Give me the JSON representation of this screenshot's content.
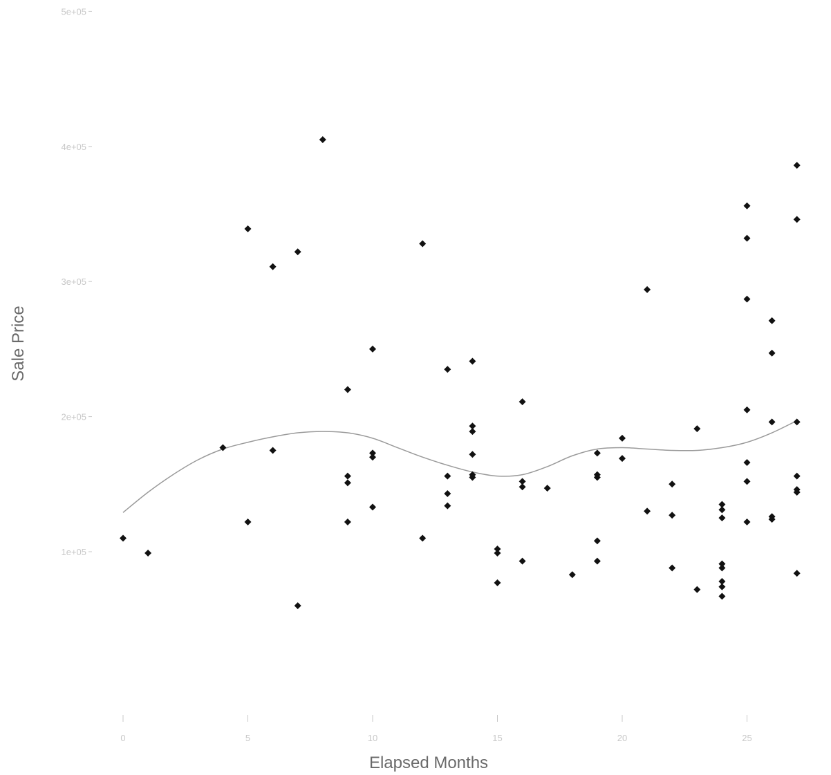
{
  "chart_data": {
    "type": "scatter",
    "title": "",
    "xlabel": "Elapsed Months",
    "ylabel": "Sale Price",
    "xlim": [
      -0.3,
      28.3
    ],
    "ylim": [
      50000,
      500000
    ],
    "x_ticks": [
      0,
      5,
      10,
      15,
      20,
      25
    ],
    "x_tick_labels": [
      "0",
      "5",
      "10",
      "15",
      "20",
      "25"
    ],
    "y_ticks": [
      100000,
      200000,
      300000,
      400000,
      500000
    ],
    "y_tick_labels": [
      "1e+05",
      "2e+05",
      "3e+05",
      "4e+05",
      "5e+05"
    ],
    "grid": false,
    "legend": "none",
    "point_color": "#111111",
    "smooth_color": "#9a9a9a",
    "points": [
      {
        "x": 0,
        "y": 110000
      },
      {
        "x": 1,
        "y": 99000
      },
      {
        "x": 4,
        "y": 177000
      },
      {
        "x": 5,
        "y": 339000
      },
      {
        "x": 5,
        "y": 122000
      },
      {
        "x": 6,
        "y": 311000
      },
      {
        "x": 6,
        "y": 175000
      },
      {
        "x": 7,
        "y": 322000
      },
      {
        "x": 7,
        "y": 60000
      },
      {
        "x": 8,
        "y": 405000
      },
      {
        "x": 9,
        "y": 220000
      },
      {
        "x": 9,
        "y": 156000
      },
      {
        "x": 9,
        "y": 151000
      },
      {
        "x": 9,
        "y": 122000
      },
      {
        "x": 10,
        "y": 250000
      },
      {
        "x": 10,
        "y": 173000
      },
      {
        "x": 10,
        "y": 170000
      },
      {
        "x": 10,
        "y": 133000
      },
      {
        "x": 12,
        "y": 328000
      },
      {
        "x": 12,
        "y": 110000
      },
      {
        "x": 13,
        "y": 235000
      },
      {
        "x": 13,
        "y": 156000
      },
      {
        "x": 13,
        "y": 143000
      },
      {
        "x": 13,
        "y": 134000
      },
      {
        "x": 14,
        "y": 241000
      },
      {
        "x": 14,
        "y": 193000
      },
      {
        "x": 14,
        "y": 189000
      },
      {
        "x": 14,
        "y": 172000
      },
      {
        "x": 14,
        "y": 157000
      },
      {
        "x": 14,
        "y": 155000
      },
      {
        "x": 15,
        "y": 102000
      },
      {
        "x": 15,
        "y": 99000
      },
      {
        "x": 15,
        "y": 77000
      },
      {
        "x": 16,
        "y": 211000
      },
      {
        "x": 16,
        "y": 152000
      },
      {
        "x": 16,
        "y": 148000
      },
      {
        "x": 16,
        "y": 93000
      },
      {
        "x": 17,
        "y": 147000
      },
      {
        "x": 18,
        "y": 83000
      },
      {
        "x": 19,
        "y": 173000
      },
      {
        "x": 19,
        "y": 157000
      },
      {
        "x": 19,
        "y": 155000
      },
      {
        "x": 19,
        "y": 108000
      },
      {
        "x": 19,
        "y": 93000
      },
      {
        "x": 20,
        "y": 184000
      },
      {
        "x": 20,
        "y": 169000
      },
      {
        "x": 21,
        "y": 294000
      },
      {
        "x": 21,
        "y": 130000
      },
      {
        "x": 22,
        "y": 150000
      },
      {
        "x": 22,
        "y": 127000
      },
      {
        "x": 22,
        "y": 88000
      },
      {
        "x": 23,
        "y": 191000
      },
      {
        "x": 23,
        "y": 72000
      },
      {
        "x": 24,
        "y": 135000
      },
      {
        "x": 24,
        "y": 131000
      },
      {
        "x": 24,
        "y": 125000
      },
      {
        "x": 24,
        "y": 91000
      },
      {
        "x": 24,
        "y": 88000
      },
      {
        "x": 24,
        "y": 78000
      },
      {
        "x": 24,
        "y": 74000
      },
      {
        "x": 24,
        "y": 67000
      },
      {
        "x": 25,
        "y": 356000
      },
      {
        "x": 25,
        "y": 332000
      },
      {
        "x": 25,
        "y": 287000
      },
      {
        "x": 25,
        "y": 205000
      },
      {
        "x": 25,
        "y": 166000
      },
      {
        "x": 25,
        "y": 152000
      },
      {
        "x": 25,
        "y": 122000
      },
      {
        "x": 26,
        "y": 271000
      },
      {
        "x": 26,
        "y": 247000
      },
      {
        "x": 26,
        "y": 196000
      },
      {
        "x": 26,
        "y": 126000
      },
      {
        "x": 26,
        "y": 124000
      },
      {
        "x": 27,
        "y": 386000
      },
      {
        "x": 27,
        "y": 346000
      },
      {
        "x": 27,
        "y": 196000
      },
      {
        "x": 27,
        "y": 156000
      },
      {
        "x": 27,
        "y": 146000
      },
      {
        "x": 27,
        "y": 144000
      },
      {
        "x": 27,
        "y": 84000
      }
    ],
    "smooth_line": [
      {
        "x": 0,
        "y": 129000
      },
      {
        "x": 1,
        "y": 144000
      },
      {
        "x": 2,
        "y": 157000
      },
      {
        "x": 3,
        "y": 168000
      },
      {
        "x": 4,
        "y": 176000
      },
      {
        "x": 5,
        "y": 181000
      },
      {
        "x": 6,
        "y": 185000
      },
      {
        "x": 7,
        "y": 188000
      },
      {
        "x": 8,
        "y": 189000
      },
      {
        "x": 9,
        "y": 188000
      },
      {
        "x": 10,
        "y": 184000
      },
      {
        "x": 11,
        "y": 177000
      },
      {
        "x": 12,
        "y": 170000
      },
      {
        "x": 13,
        "y": 164000
      },
      {
        "x": 14,
        "y": 159000
      },
      {
        "x": 15,
        "y": 156000
      },
      {
        "x": 16,
        "y": 157000
      },
      {
        "x": 17,
        "y": 163000
      },
      {
        "x": 18,
        "y": 171000
      },
      {
        "x": 19,
        "y": 176000
      },
      {
        "x": 20,
        "y": 177000
      },
      {
        "x": 21,
        "y": 176000
      },
      {
        "x": 22,
        "y": 175000
      },
      {
        "x": 23,
        "y": 175000
      },
      {
        "x": 24,
        "y": 177000
      },
      {
        "x": 25,
        "y": 181000
      },
      {
        "x": 26,
        "y": 188000
      },
      {
        "x": 27,
        "y": 197000
      }
    ]
  }
}
